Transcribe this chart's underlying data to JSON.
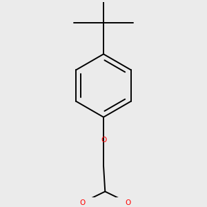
{
  "background_color": "#ebebeb",
  "bond_color": "#000000",
  "oxygen_color": "#ff0000",
  "line_width": 1.4,
  "figsize": [
    3.0,
    3.0
  ],
  "dpi": 100,
  "xlim": [
    0.15,
    0.85
  ],
  "ylim": [
    0.05,
    0.95
  ]
}
